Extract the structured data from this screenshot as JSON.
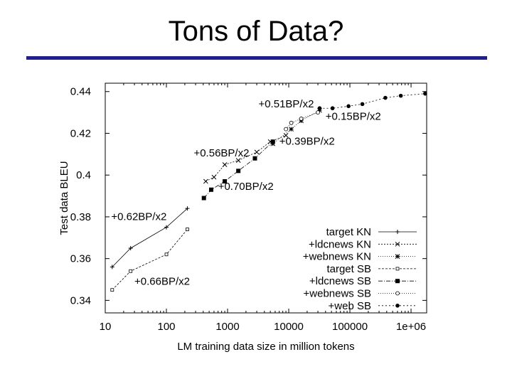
{
  "slide": {
    "title": "Tons of Data?"
  },
  "chart_data": {
    "type": "line",
    "xlabel": "LM training data size in million tokens",
    "ylabel": "Test data BLEU",
    "xscale": "log",
    "xlim": [
      10,
      1800000
    ],
    "ylim": [
      0.334,
      0.444
    ],
    "x_tick_labels": [
      "10",
      "100",
      "1000",
      "10000",
      "100000",
      "1e+06"
    ],
    "x_ticks": [
      10,
      100,
      1000,
      10000,
      100000,
      1000000
    ],
    "y_tick_labels": [
      "0.34",
      "0.36",
      "0.38",
      "0.4",
      "0.42",
      "0.44"
    ],
    "y_ticks": [
      0.34,
      0.36,
      0.38,
      0.4,
      0.42,
      0.44
    ],
    "legend_position": "bottom-right",
    "series": [
      {
        "name": "target KN",
        "marker": "plus",
        "dash": "",
        "x": [
          13,
          26,
          100,
          220
        ],
        "y": [
          0.356,
          0.365,
          0.375,
          0.384
        ]
      },
      {
        "name": "+ldcnews KN",
        "marker": "x",
        "dash": "2,2",
        "x": [
          440,
          600,
          900,
          1500,
          3000,
          5000,
          9000
        ],
        "y": [
          0.397,
          0.399,
          0.405,
          0.407,
          0.411,
          0.416,
          0.419
        ]
      },
      {
        "name": "+webnews KN",
        "marker": "star",
        "dash": "1,2",
        "x": [
          5500,
          11000,
          16000,
          32000
        ],
        "y": [
          0.415,
          0.422,
          0.426,
          0.431
        ]
      },
      {
        "name": "target SB",
        "marker": "square-open",
        "dash": "3,2",
        "x": [
          13,
          26,
          100,
          220
        ],
        "y": [
          0.345,
          0.354,
          0.362,
          0.374
        ]
      },
      {
        "name": "+ldcnews SB",
        "marker": "square-filled",
        "dash": "6,2,1,2",
        "x": [
          410,
          540,
          900,
          1500,
          2800,
          5500
        ],
        "y": [
          0.389,
          0.393,
          0.397,
          0.402,
          0.408,
          0.416
        ]
      },
      {
        "name": "+webnews SB",
        "marker": "circle-open",
        "dash": "1,2",
        "x": [
          9000,
          11000,
          16000,
          30000
        ],
        "y": [
          0.422,
          0.425,
          0.427,
          0.43
        ]
      },
      {
        "name": "+web SB",
        "marker": "circle-filled",
        "dash": "2,3",
        "x": [
          32000,
          52000,
          95000,
          160000,
          380000,
          680000,
          1700000
        ],
        "y": [
          0.432,
          0.432,
          0.433,
          0.434,
          0.437,
          0.438,
          0.439
        ]
      }
    ],
    "annotations": [
      {
        "text": "+0.51BP/x2",
        "x": 3200,
        "y": 0.4325
      },
      {
        "text": "+0.15BP/x2",
        "x": 40000,
        "y": 0.4265
      },
      {
        "text": "+0.39BP/x2",
        "x": 7000,
        "y": 0.4145
      },
      {
        "text": "+0.56BP/x2",
        "x": 280,
        "y": 0.409
      },
      {
        "text": "+0.70BP/x2",
        "x": 700,
        "y": 0.393
      },
      {
        "text": "+0.62BP/x2",
        "x": 12.5,
        "y": 0.3785
      },
      {
        "text": "+0.66BP/x2",
        "x": 30,
        "y": 0.3475
      }
    ]
  }
}
